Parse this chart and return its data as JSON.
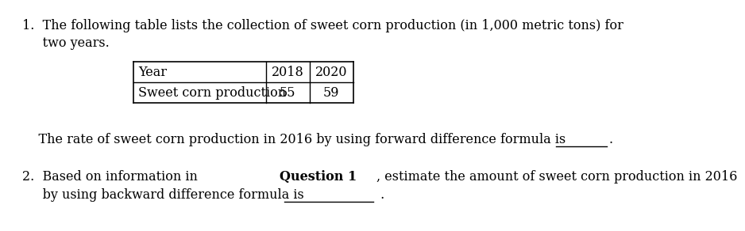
{
  "bg_color": "#ffffff",
  "text_color": "#000000",
  "font_size": 11.5,
  "q1_line1": "1.  The following table lists the collection of sweet corn production (in 1,000 metric tons) for",
  "q1_line2": "     two years.",
  "table_header": [
    "Year",
    "2018",
    "2020"
  ],
  "table_row_label": "Sweet corn production",
  "table_values": [
    "55",
    "59"
  ],
  "q1_sentence": "    The rate of sweet corn production in 2016 by using forward difference formula is",
  "q1_period": ".",
  "q2_prefix": "2.  Based on information in ",
  "q2_bold": "Question 1",
  "q2_suffix": ", estimate the amount of sweet corn production in 2016",
  "q2_line2": "     by using backward difference formula is",
  "q2_period": "."
}
